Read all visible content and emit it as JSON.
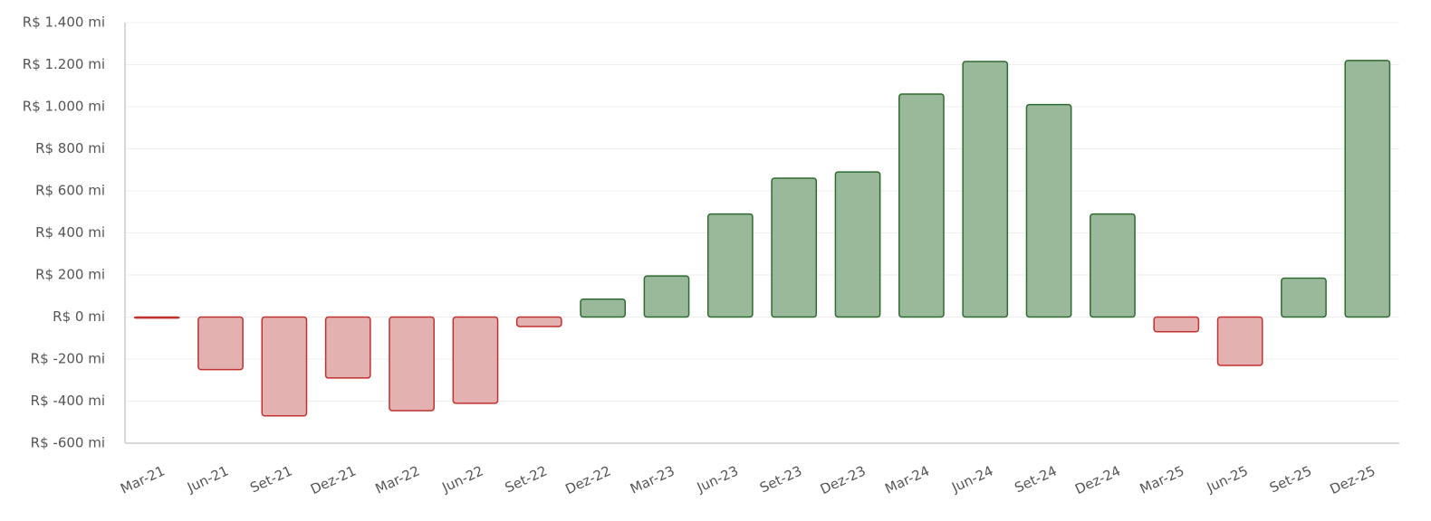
{
  "chart_data": {
    "type": "bar",
    "categories": [
      "Mar-21",
      "Jun-21",
      "Set-21",
      "Dez-21",
      "Mar-22",
      "Jun-22",
      "Set-22",
      "Dez-22",
      "Mar-23",
      "Jun-23",
      "Set-23",
      "Dez-23",
      "Mar-24",
      "Jun-24",
      "Set-24",
      "Dez-24",
      "Mar-25",
      "Jun-25",
      "Set-25",
      "Dez-25"
    ],
    "values": [
      -5,
      -250,
      -470,
      -290,
      -445,
      -410,
      -45,
      85,
      195,
      490,
      660,
      690,
      1060,
      1215,
      1010,
      490,
      -70,
      -230,
      185,
      1220
    ],
    "positive_color": "#9ab89a",
    "positive_stroke": "#2e6b30",
    "negative_color": "#e4b1b1",
    "negative_stroke": "#c0302f",
    "ylim": [
      -600,
      1400
    ],
    "yticks": [
      {
        "value": -600,
        "label": "R$ -600 mi"
      },
      {
        "value": -400,
        "label": "R$ -400 mi"
      },
      {
        "value": -200,
        "label": "R$ -200 mi"
      },
      {
        "value": 0,
        "label": "R$ 0 mi"
      },
      {
        "value": 200,
        "label": "R$ 200 mi"
      },
      {
        "value": 400,
        "label": "R$ 400 mi"
      },
      {
        "value": 600,
        "label": "R$ 600 mi"
      },
      {
        "value": 800,
        "label": "R$ 800 mi"
      },
      {
        "value": 1000,
        "label": "R$ 1.000 mi"
      },
      {
        "value": 1200,
        "label": "R$ 1.200 mi"
      },
      {
        "value": 1400,
        "label": "R$ 1.400 mi"
      }
    ],
    "grid": true
  }
}
